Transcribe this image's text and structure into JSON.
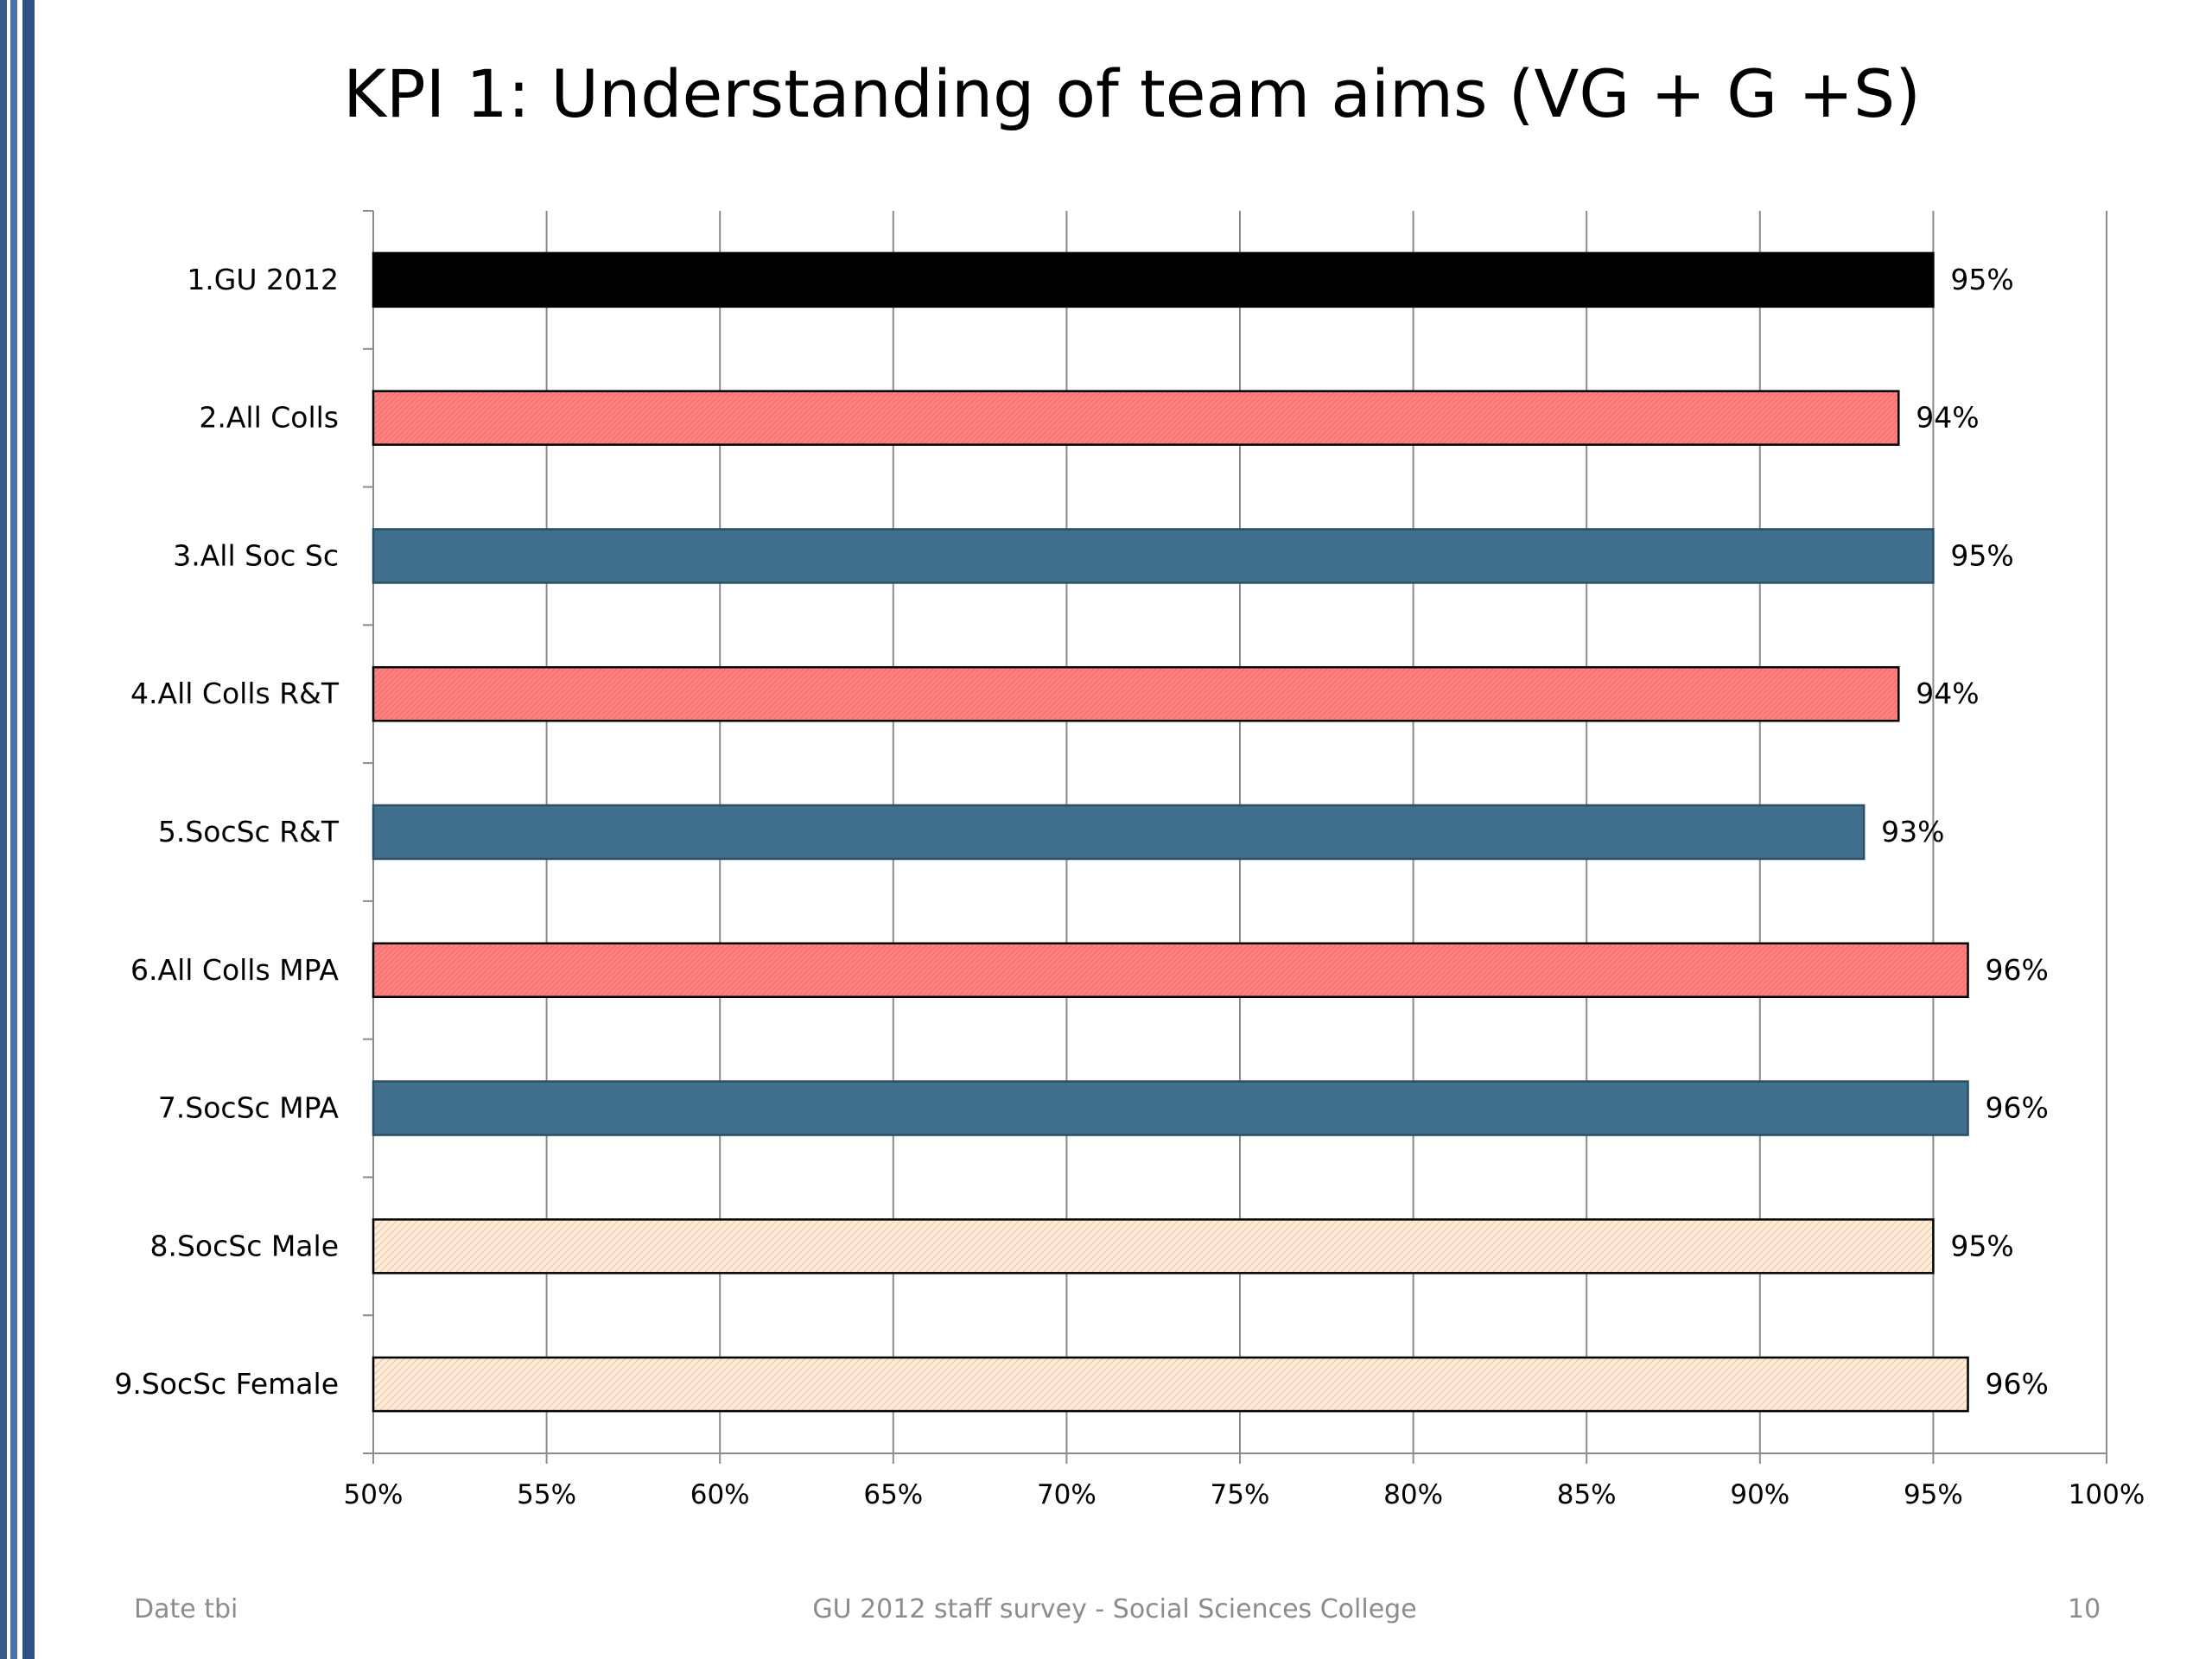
{
  "slide": {
    "title": "KPI 1: Understanding of team aims (VG + G +S)",
    "footer_left": "Date tbi",
    "footer_center": "GU 2012 staff survey -  Social Sciences College",
    "footer_right": "10"
  },
  "colors": {
    "black": "#000000",
    "salmon": "#ff8080",
    "steel_blue": "#41708f",
    "peach": "#fde9d9",
    "gridline": "#8c8c8c",
    "border_dark": "#1f3864",
    "border_mid": "#4f6fa8"
  },
  "chart_data": {
    "type": "bar",
    "orientation": "horizontal",
    "title": "KPI 1: Understanding of team aims (VG + G +S)",
    "categories": [
      "1.GU 2012",
      "2.All Colls",
      "3.All Soc Sc",
      "4.All Colls R&T",
      "5.SocSc R&T",
      "6.All Colls MPA",
      "7.SocSc MPA",
      "8.SocSc Male",
      "9.SocSc Female"
    ],
    "values": [
      95,
      94,
      95,
      94,
      93,
      96,
      96,
      95,
      96
    ],
    "data_labels": [
      "95%",
      "94%",
      "95%",
      "94%",
      "93%",
      "96%",
      "96%",
      "95%",
      "96%"
    ],
    "bar_styles": [
      "black",
      "salmon",
      "steel_blue",
      "salmon",
      "steel_blue",
      "salmon",
      "steel_blue",
      "peach",
      "peach"
    ],
    "xlim": [
      50,
      100
    ],
    "xticks": [
      50,
      55,
      60,
      65,
      70,
      75,
      80,
      85,
      90,
      95,
      100
    ],
    "xtick_labels": [
      "50%",
      "55%",
      "60%",
      "65%",
      "70%",
      "75%",
      "80%",
      "85%",
      "90%",
      "95%",
      "100%"
    ],
    "grid": "vertical",
    "legend": "none"
  }
}
